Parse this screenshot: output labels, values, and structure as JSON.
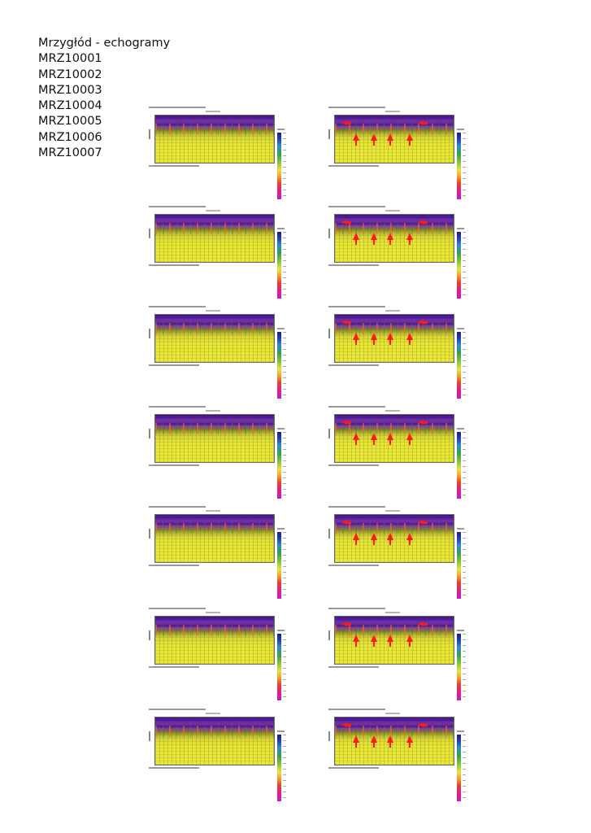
{
  "title": "Mrzygłód - echogramy",
  "codes": [
    "MRZ10001",
    "MRZ10002",
    "MRZ10003",
    "MRZ10004",
    "MRZ10005",
    "MRZ10006",
    "MRZ10007"
  ],
  "echograms": {
    "rows": 7,
    "columns": 2,
    "annotated_column": "right",
    "annotation_color": "#ff1a1a",
    "colormap_stops": [
      "#1b1f8a",
      "#2240b0",
      "#2c8cd0",
      "#37a04a",
      "#7fc43a",
      "#e8e33a",
      "#f0a030",
      "#e8402c",
      "#e0208a",
      "#c816d0"
    ]
  }
}
